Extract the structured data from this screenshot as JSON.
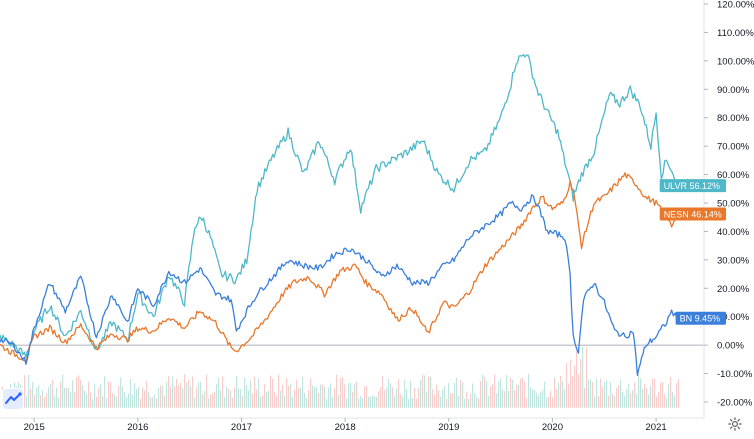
{
  "chart_data": {
    "type": "line",
    "y_unit": "%",
    "ylim": [
      -22,
      122
    ],
    "y_ticks": [
      "120.00%",
      "110.00%",
      "100.00%",
      "90.00%",
      "80.00%",
      "70.00%",
      "60.00%",
      "50.00%",
      "40.00%",
      "30.00%",
      "20.00%",
      "10.00%",
      "0.00%",
      "-10.00%",
      "-20.00%"
    ],
    "y_tick_values": [
      120,
      110,
      100,
      90,
      80,
      70,
      60,
      50,
      40,
      30,
      20,
      10,
      0,
      -10,
      -20
    ],
    "x_ticks": [
      "2015",
      "2016",
      "2017",
      "2018",
      "2019",
      "2020",
      "2021"
    ],
    "x_tick_values": [
      2015,
      2016,
      2017,
      2018,
      2019,
      2020,
      2021
    ],
    "xlim": [
      2014.67,
      2021.25
    ],
    "grid": false,
    "series": [
      {
        "name": "ULVR",
        "color": "#4fb8c8",
        "last_label": "56.12%",
        "x": [
          2014.67,
          2014.8,
          2014.92,
          2015.0,
          2015.15,
          2015.3,
          2015.45,
          2015.6,
          2015.75,
          2015.9,
          2016.0,
          2016.15,
          2016.3,
          2016.45,
          2016.55,
          2016.62,
          2016.7,
          2016.8,
          2016.95,
          2017.05,
          2017.15,
          2017.3,
          2017.45,
          2017.6,
          2017.75,
          2017.9,
          2018.05,
          2018.15,
          2018.3,
          2018.45,
          2018.6,
          2018.75,
          2018.9,
          2019.05,
          2019.2,
          2019.35,
          2019.5,
          2019.6,
          2019.65,
          2019.75,
          2019.85,
          2019.95,
          2020.05,
          2020.15,
          2020.2,
          2020.28,
          2020.4,
          2020.55,
          2020.65,
          2020.75,
          2020.85,
          2020.95,
          2021.0,
          2021.05,
          2021.1,
          2021.15,
          2021.2
        ],
        "values": [
          3,
          0,
          -4,
          5,
          14,
          3,
          12,
          -2,
          8,
          2,
          18,
          10,
          25,
          15,
          42,
          45,
          38,
          25,
          23,
          30,
          55,
          66,
          75,
          60,
          72,
          58,
          70,
          48,
          62,
          65,
          68,
          72,
          60,
          55,
          65,
          68,
          80,
          92,
          100,
          103,
          90,
          82,
          75,
          60,
          52,
          60,
          68,
          88,
          85,
          90,
          84,
          70,
          82,
          60,
          65,
          62,
          56.12
        ]
      },
      {
        "name": "NESN",
        "color": "#e8782b",
        "last_label": "46.14%",
        "x": [
          2014.67,
          2014.8,
          2014.92,
          2015.0,
          2015.15,
          2015.3,
          2015.45,
          2015.6,
          2015.75,
          2015.9,
          2016.0,
          2016.15,
          2016.3,
          2016.45,
          2016.6,
          2016.75,
          2016.9,
          2016.95,
          2017.1,
          2017.25,
          2017.4,
          2017.5,
          2017.65,
          2017.8,
          2017.95,
          2018.1,
          2018.2,
          2018.35,
          2018.5,
          2018.65,
          2018.8,
          2018.95,
          2019.05,
          2019.2,
          2019.35,
          2019.5,
          2019.6,
          2019.7,
          2019.8,
          2019.9,
          2020.0,
          2020.1,
          2020.17,
          2020.2,
          2020.28,
          2020.4,
          2020.5,
          2020.6,
          2020.7,
          2020.8,
          2020.9,
          2021.0,
          2021.1,
          2021.15,
          2021.2
        ],
        "values": [
          0,
          -3,
          -5,
          3,
          6,
          1,
          7,
          -1,
          4,
          2,
          6,
          5,
          10,
          6,
          12,
          8,
          -1,
          -2,
          3,
          10,
          18,
          22,
          24,
          18,
          26,
          28,
          22,
          18,
          9,
          13,
          4,
          15,
          13,
          19,
          28,
          34,
          38,
          42,
          48,
          52,
          48,
          50,
          57,
          55,
          35,
          50,
          52,
          56,
          60,
          57,
          52,
          50,
          45,
          42,
          46.14
        ]
      },
      {
        "name": "BN",
        "color": "#3a7fdc",
        "last_label": "9.45%",
        "x": [
          2014.67,
          2014.8,
          2014.92,
          2015.0,
          2015.15,
          2015.3,
          2015.45,
          2015.6,
          2015.75,
          2015.9,
          2016.0,
          2016.15,
          2016.3,
          2016.45,
          2016.6,
          2016.75,
          2016.9,
          2016.95,
          2017.05,
          2017.15,
          2017.3,
          2017.45,
          2017.6,
          2017.75,
          2017.9,
          2018.05,
          2018.2,
          2018.35,
          2018.5,
          2018.65,
          2018.8,
          2018.95,
          2019.05,
          2019.2,
          2019.35,
          2019.5,
          2019.6,
          2019.7,
          2019.8,
          2019.85,
          2019.95,
          2020.05,
          2020.12,
          2020.17,
          2020.2,
          2020.25,
          2020.3,
          2020.4,
          2020.5,
          2020.6,
          2020.7,
          2020.78,
          2020.82,
          2020.9,
          2021.0,
          2021.1,
          2021.15,
          2021.2
        ],
        "values": [
          2,
          0,
          -6,
          6,
          22,
          12,
          24,
          3,
          18,
          8,
          20,
          14,
          26,
          22,
          27,
          18,
          16,
          5,
          12,
          18,
          24,
          30,
          28,
          27,
          32,
          34,
          30,
          24,
          28,
          22,
          22,
          28,
          30,
          38,
          42,
          46,
          50,
          48,
          52,
          50,
          40,
          39,
          38,
          25,
          3,
          -2,
          16,
          22,
          15,
          5,
          3,
          5,
          -10,
          0,
          3,
          8,
          12,
          9.45
        ]
      }
    ],
    "volume_band": {
      "ymin": -22,
      "ymax": -10
    }
  }
}
